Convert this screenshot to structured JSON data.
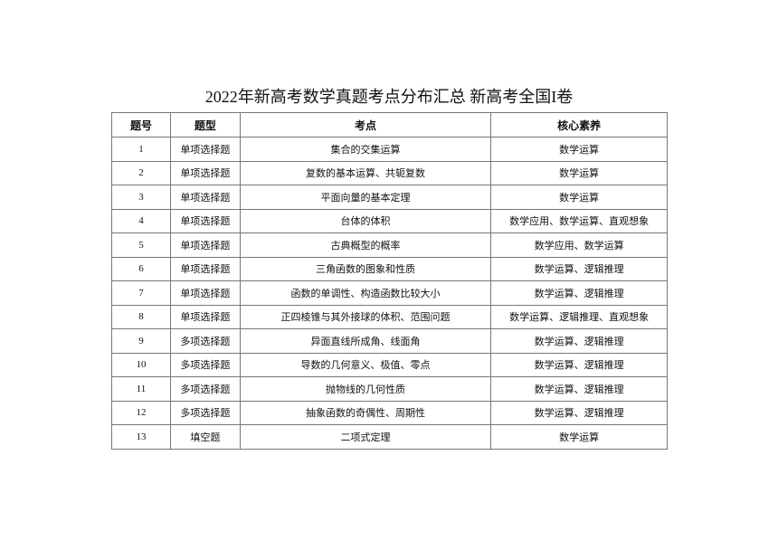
{
  "title": "2022年新高考数学真题考点分布汇总 新高考全国I卷",
  "headers": [
    "题号",
    "题型",
    "考点",
    "核心素养"
  ],
  "rows": [
    [
      "1",
      "单项选择题",
      "集合的交集运算",
      "数学运算"
    ],
    [
      "2",
      "单项选择题",
      "复数的基本运算、共轭复数",
      "数学运算"
    ],
    [
      "3",
      "单项选择题",
      "平面向量的基本定理",
      "数学运算"
    ],
    [
      "4",
      "单项选择题",
      "台体的体积",
      "数学应用、数学运算、直观想象"
    ],
    [
      "5",
      "单项选择题",
      "古典概型的概率",
      "数学应用、数学运算"
    ],
    [
      "6",
      "单项选择题",
      "三角函数的图象和性质",
      "数学运算、逻辑推理"
    ],
    [
      "7",
      "单项选择题",
      "函数的单调性、构造函数比较大小",
      "数学运算、逻辑推理"
    ],
    [
      "8",
      "单项选择题",
      "正四棱锥与其外接球的体积、范围问题",
      "数学运算、逻辑推理、直观想象"
    ],
    [
      "9",
      "多项选择题",
      "异面直线所成角、线面角",
      "数学运算、逻辑推理"
    ],
    [
      "10",
      "多项选择题",
      "导数的几何意义、极值、零点",
      "数学运算、逻辑推理"
    ],
    [
      "11",
      "多项选择题",
      "抛物线的几何性质",
      "数学运算、逻辑推理"
    ],
    [
      "12",
      "多项选择题",
      "抽象函数的奇偶性、周期性",
      "数学运算、逻辑推理"
    ],
    [
      "13",
      "填空题",
      "二项式定理",
      "数学运算"
    ]
  ]
}
